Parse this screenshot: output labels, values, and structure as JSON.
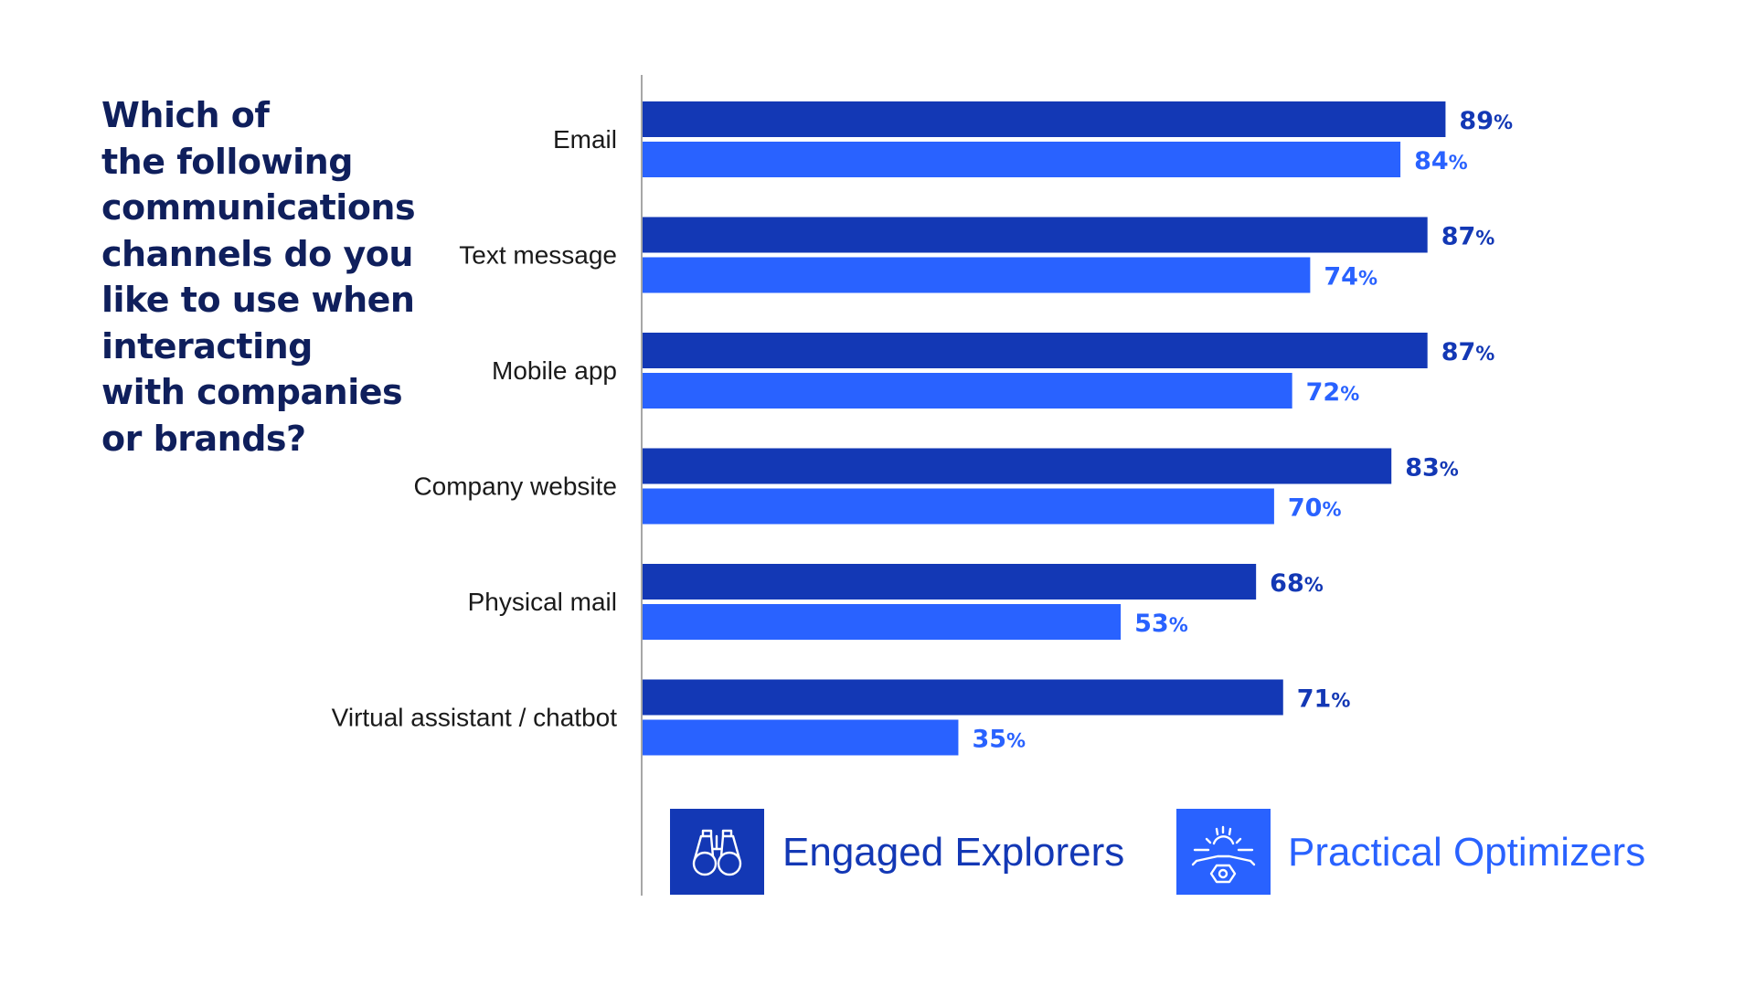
{
  "question": "Which of the following communications channels do you like to use when interacting with companies or brands?",
  "question_lines": [
    "Which of",
    "the following",
    "communications",
    "channels do you",
    "like to use when",
    "interacting",
    "with companies",
    "or brands?"
  ],
  "chart_data": {
    "type": "bar",
    "orientation": "horizontal",
    "categories": [
      "Email",
      "Text message",
      "Mobile app",
      "Company website",
      "Physical mail",
      "Virtual assistant / chatbot"
    ],
    "series": [
      {
        "name": "Engaged Explorers",
        "values": [
          89,
          87,
          87,
          83,
          68,
          71
        ],
        "color": "#1338b5"
      },
      {
        "name": "Practical Optimizers",
        "values": [
          84,
          74,
          72,
          70,
          53,
          35
        ],
        "color": "#2962ff"
      }
    ],
    "value_suffix": "%",
    "xlim": [
      0,
      100
    ],
    "grid": false,
    "legend_position": "bottom"
  },
  "legend": [
    {
      "label": "Engaged Explorers",
      "icon": "binoculars-icon",
      "color": "#1338b5"
    },
    {
      "label": "Practical Optimizers",
      "icon": "gear-wrench-icon",
      "color": "#2962ff"
    }
  ]
}
